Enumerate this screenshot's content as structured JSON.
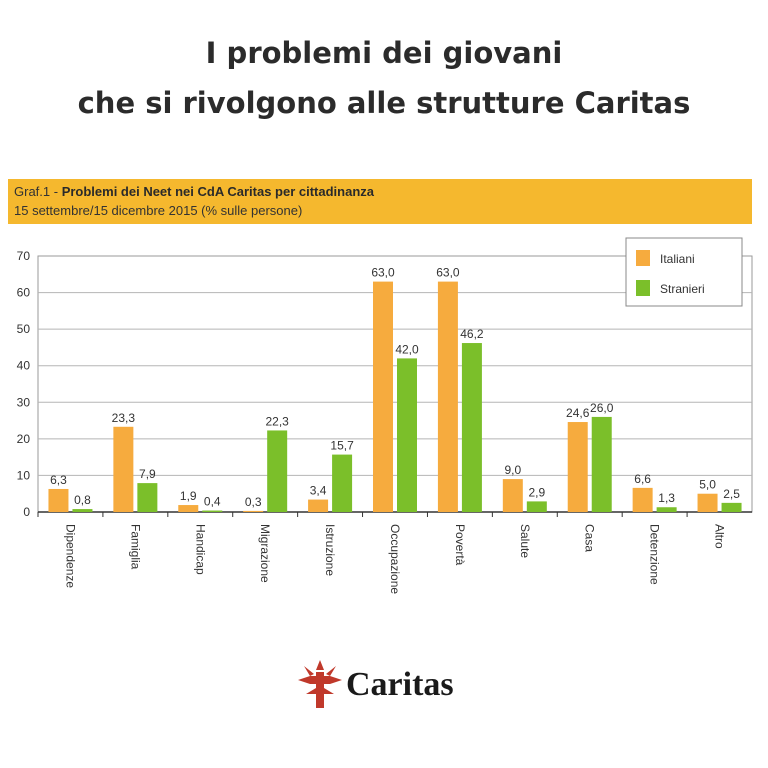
{
  "headline": {
    "line1": "I  problemi dei giovani",
    "line2": "che si rivolgono alle strutture Caritas"
  },
  "banner": {
    "prefix": "Graf.1 - ",
    "title": "Problemi dei Neet nei CdA Caritas per cittadinanza",
    "subtitle": "15 settembre/15 dicembre 2015 (% sulle persone)"
  },
  "logo": {
    "text": "Caritas",
    "color": "#c0392b"
  },
  "colors": {
    "italiani": "#f6ab3e",
    "stranieri": "#7bbf2a",
    "banner": "#f5b82e"
  },
  "chart_data": {
    "type": "bar",
    "categories": [
      "Dipendenze",
      "Famiglia",
      "Handicap",
      "Migrazione",
      "Istruzione",
      "Occupazione",
      "Povertà",
      "Salute",
      "Casa",
      "Detenzione",
      "Altro"
    ],
    "series": [
      {
        "name": "Italiani",
        "values": [
          6.3,
          23.3,
          1.9,
          0.3,
          3.4,
          63.0,
          63.0,
          9.0,
          24.6,
          6.6,
          5.0
        ],
        "labels": [
          "6,3",
          "23,3",
          "1,9",
          "0,3",
          "3,4",
          "63,0",
          "63,0",
          "9,0",
          "24,6",
          "6,6",
          "5,0"
        ]
      },
      {
        "name": "Stranieri",
        "values": [
          0.8,
          7.9,
          0.4,
          22.3,
          15.7,
          42.0,
          46.2,
          2.9,
          26.0,
          1.3,
          2.5
        ],
        "labels": [
          "0,8",
          "7,9",
          "0,4",
          "22,3",
          "15,7",
          "42,0",
          "46,2",
          "2,9",
          "26,0",
          "1,3",
          "2,5"
        ]
      }
    ],
    "yticks": [
      "0",
      "10",
      "20",
      "30",
      "40",
      "50",
      "60",
      "70"
    ],
    "ylim": [
      0,
      70
    ],
    "grid": true,
    "legend": "top-right"
  }
}
